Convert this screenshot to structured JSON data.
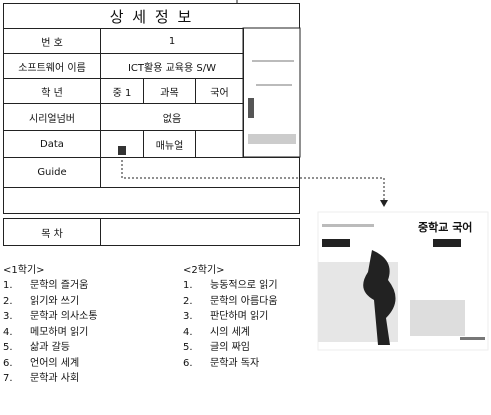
{
  "header": {
    "title": "상 세 정 보"
  },
  "details": {
    "rows": [
      [
        "번 호",
        "1"
      ],
      [
        "소프트웨어 이름",
        "ICT활용 교육용 S/W"
      ],
      [
        "학 년",
        "중 1",
        "과목",
        "국어"
      ],
      [
        "시리얼넘버",
        "없음"
      ],
      [
        "Data",
        "매뉴얼"
      ],
      [
        "Guide"
      ]
    ]
  },
  "contents": {
    "label": "목 차",
    "semesters": [
      {
        "title": "<1학기>",
        "items": [
          {
            "number": "1.",
            "text": "문학의 즐거움"
          },
          {
            "number": "2.",
            "text": "읽기와 쓰기"
          },
          {
            "number": "3.",
            "text": "문학과 의사소통"
          },
          {
            "number": "4.",
            "text": "메모하며 읽기"
          },
          {
            "number": "5.",
            "text": "삶과 갈등"
          },
          {
            "number": "6.",
            "text": "언어의 세계"
          },
          {
            "number": "7.",
            "text": "문학과 사회"
          }
        ]
      },
      {
        "title": "<2학기>",
        "items": [
          {
            "number": "1.",
            "text": "능동적으로 읽기"
          },
          {
            "number": "2.",
            "text": "문학의 아름다움"
          },
          {
            "number": "3.",
            "text": "판단하며 읽기"
          },
          {
            "number": "4.",
            "text": "시의 세계"
          },
          {
            "number": "5.",
            "text": "글의 짜임"
          },
          {
            "number": "6.",
            "text": "문학과 독자"
          }
        ]
      }
    ]
  },
  "cover": {
    "title": "중학교 국어"
  }
}
